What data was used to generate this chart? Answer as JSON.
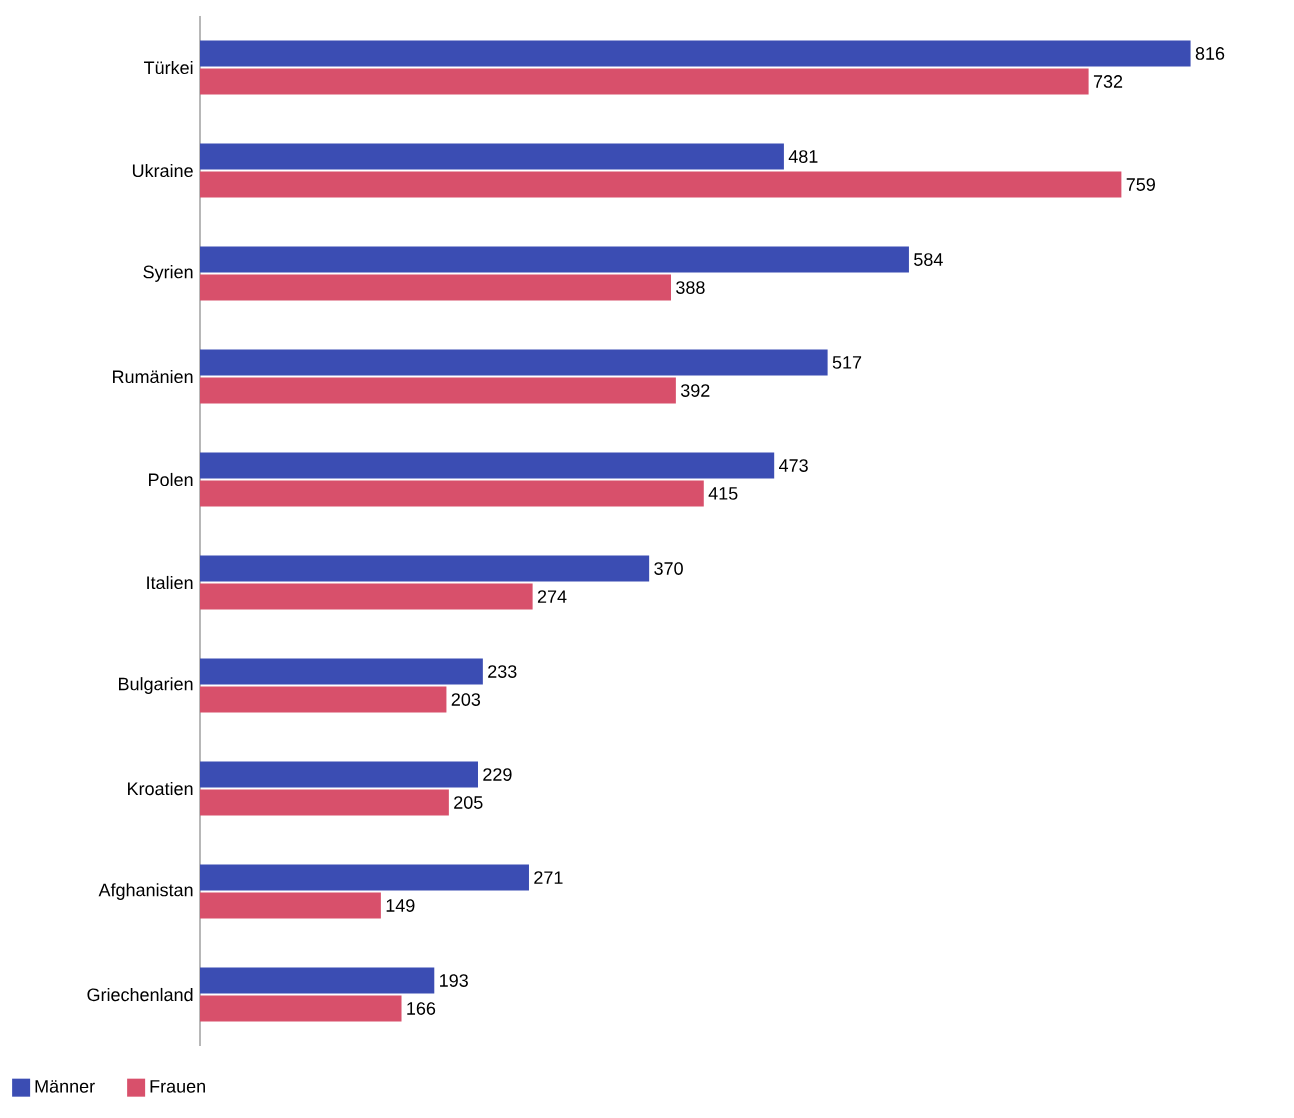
{
  "chart_data": {
    "type": "bar",
    "orientation": "horizontal",
    "data_labels": true,
    "legend": "bottom left",
    "categories": [
      "Türkei",
      "Ukraine",
      "Syrien",
      "Rumänien",
      "Polen",
      "Italien",
      "Bulgarien",
      "Kroatien",
      "Afghanistan",
      "Griechenland"
    ],
    "series": [
      {
        "name": "Männer",
        "color": "#3b4db3",
        "values": [
          816,
          481,
          584,
          517,
          473,
          370,
          233,
          229,
          271,
          193
        ]
      },
      {
        "name": "Frauen",
        "color": "#d8506b",
        "values": [
          732,
          759,
          388,
          392,
          415,
          274,
          203,
          205,
          149,
          166
        ]
      }
    ]
  }
}
